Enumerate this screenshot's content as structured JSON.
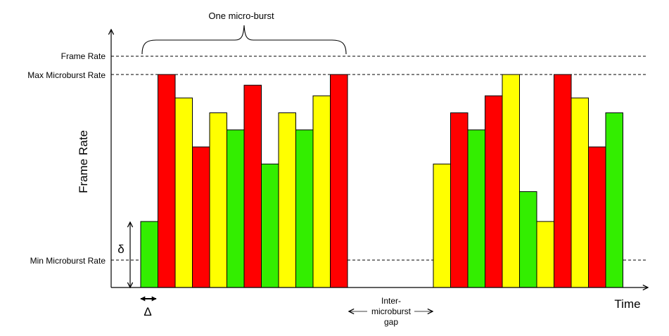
{
  "labels": {
    "title": "One micro-burst",
    "frame_rate": "Frame Rate",
    "max_rate": "Max Microburst Rate",
    "min_rate": "Min Microburst Rate",
    "y_axis": "Frame Rate",
    "x_axis": "Time",
    "delta_lower": "δ",
    "delta_upper": "Δ",
    "gap_line1": "Inter-",
    "gap_line2": "microburst",
    "gap_line3": "gap"
  },
  "colors": {
    "green": "#33ee00",
    "yellow": "#ffff00",
    "red": "#ff0000",
    "outline": "#000000"
  },
  "chart_data": {
    "type": "bar",
    "xlabel": "Time",
    "ylabel": "Frame Rate",
    "reference_lines": [
      "Frame Rate",
      "Max Microburst Rate",
      "Min Microburst Rate"
    ],
    "bursts": [
      {
        "bars": [
          {
            "color": "green",
            "value": 0.31
          },
          {
            "color": "red",
            "value": 1.0
          },
          {
            "color": "yellow",
            "value": 0.89
          },
          {
            "color": "red",
            "value": 0.66
          },
          {
            "color": "yellow",
            "value": 0.82
          },
          {
            "color": "green",
            "value": 0.74
          },
          {
            "color": "red",
            "value": 0.95
          },
          {
            "color": "green",
            "value": 0.58
          },
          {
            "color": "yellow",
            "value": 0.82
          },
          {
            "color": "green",
            "value": 0.74
          },
          {
            "color": "yellow",
            "value": 0.9
          },
          {
            "color": "red",
            "value": 1.0
          }
        ]
      },
      {
        "bars": [
          {
            "color": "yellow",
            "value": 0.58
          },
          {
            "color": "red",
            "value": 0.82
          },
          {
            "color": "green",
            "value": 0.74
          },
          {
            "color": "red",
            "value": 0.9
          },
          {
            "color": "yellow",
            "value": 1.0
          },
          {
            "color": "green",
            "value": 0.45
          },
          {
            "color": "yellow",
            "value": 0.31
          },
          {
            "color": "red",
            "value": 1.0
          },
          {
            "color": "yellow",
            "value": 0.89
          },
          {
            "color": "red",
            "value": 0.66
          },
          {
            "color": "green",
            "value": 0.82
          }
        ]
      }
    ]
  }
}
